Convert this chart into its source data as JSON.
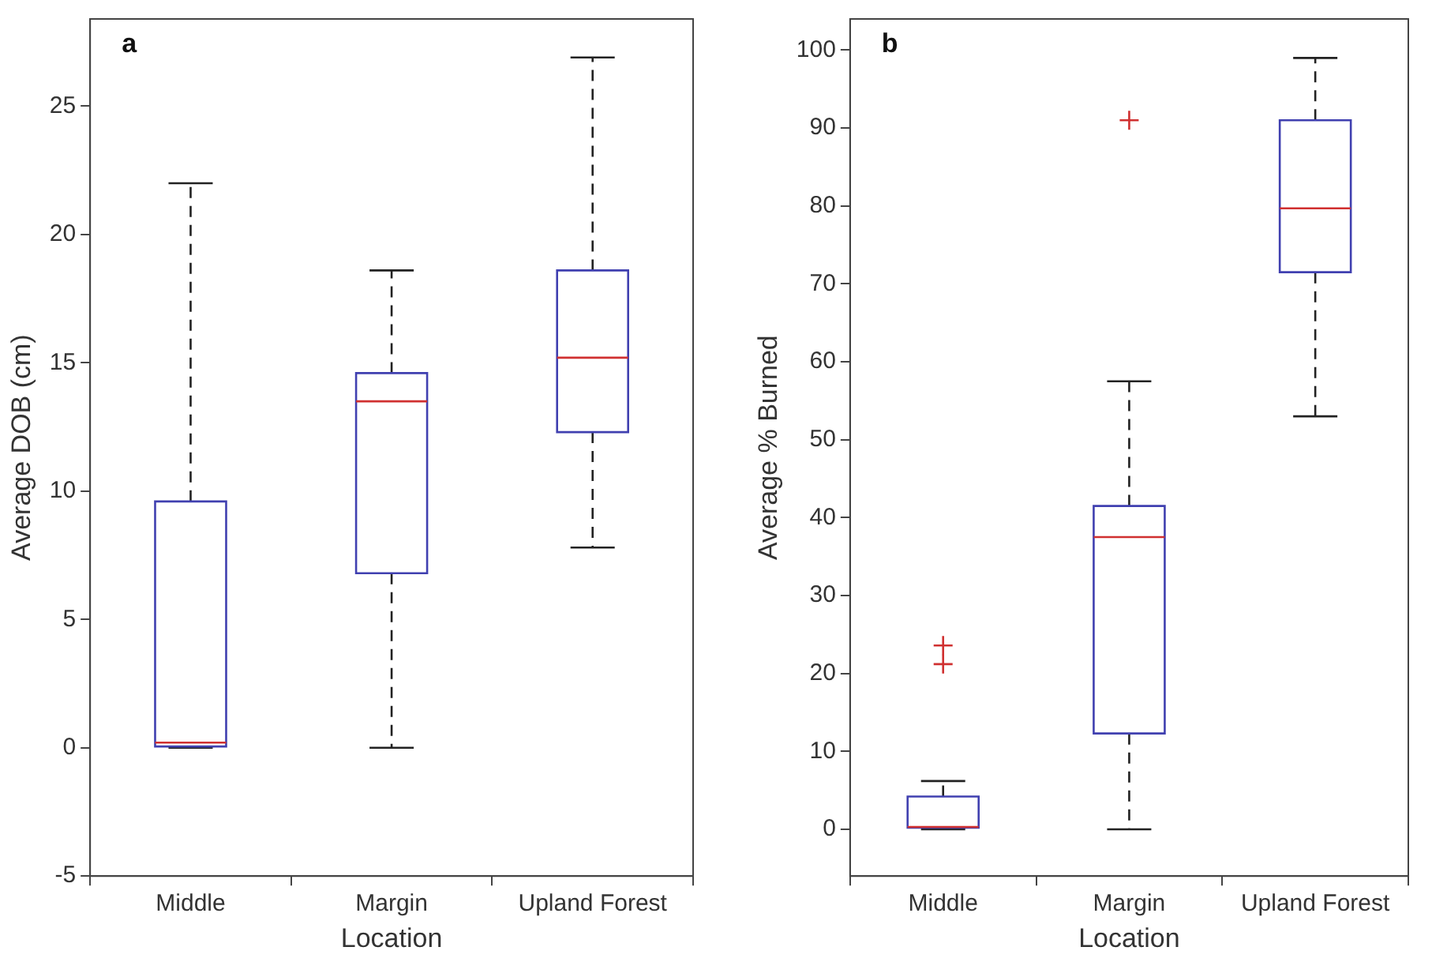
{
  "chart_data": [
    {
      "type": "box",
      "annotations": [
        "a"
      ],
      "xlabel": "Location",
      "ylabel": "Average DOB (cm)",
      "categories": [
        "Middle",
        "Margin",
        "Upland Forest"
      ],
      "ylim": [
        -5,
        28.4
      ],
      "yticks": [
        -5,
        0,
        5,
        10,
        15,
        20,
        25
      ],
      "grid": false,
      "legend": false,
      "series": [
        {
          "color": "#4040b0",
          "boxes": [
            {
              "low": 0,
              "q1": 0.05,
              "median": 0.2,
              "q3": 9.6,
              "high": 22
            },
            {
              "low": 0,
              "q1": 6.8,
              "median": 13.5,
              "q3": 14.6,
              "high": 18.6
            },
            {
              "low": 7.8,
              "q1": 12.3,
              "median": 15.2,
              "q3": 18.6,
              "high": 26.9
            }
          ]
        }
      ]
    },
    {
      "type": "box",
      "annotations": [
        "b"
      ],
      "xlabel": "Location",
      "ylabel": "Average % Burned",
      "categories": [
        "Middle",
        "Margin",
        "Upland Forest"
      ],
      "ylim": [
        -6,
        104
      ],
      "yticks": [
        0,
        10,
        20,
        30,
        40,
        50,
        60,
        70,
        80,
        90,
        100
      ],
      "grid": false,
      "legend": false,
      "series": [
        {
          "color": "#4040b0",
          "boxes": [
            {
              "low": 0,
              "q1": 0.2,
              "median": 0.3,
              "q3": 4.2,
              "high": 6.2,
              "outliers": [
                21.2,
                23.6
              ]
            },
            {
              "low": 0,
              "q1": 12.3,
              "median": 37.5,
              "q3": 41.5,
              "high": 57.5,
              "outliers": [
                91
              ]
            },
            {
              "low": 53,
              "q1": 71.5,
              "median": 79.7,
              "q3": 91,
              "high": 99
            }
          ]
        }
      ]
    }
  ]
}
